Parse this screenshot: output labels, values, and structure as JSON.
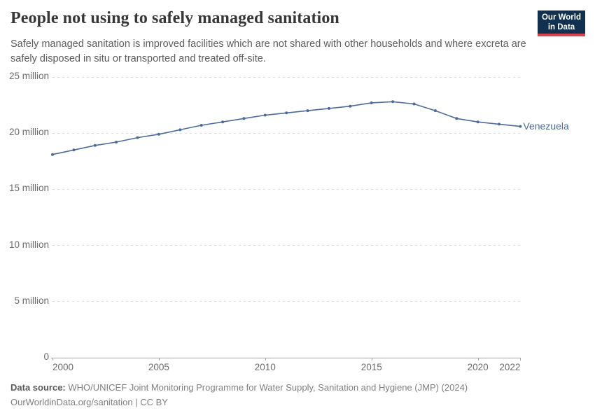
{
  "header": {
    "title": "People not using to safely managed sanitation",
    "subtitle": "Safely managed sanitation is improved facilities which are not shared with other households and where excreta are safely disposed in situ or transported and treated off-site."
  },
  "logo": {
    "line1": "Our World",
    "line2": "in Data",
    "bg_color": "#12304f",
    "accent_color": "#d7434e"
  },
  "chart_data": {
    "type": "line",
    "title": "People not using to safely managed sanitation",
    "unit": "people (millions)",
    "x": [
      2000,
      2001,
      2002,
      2003,
      2004,
      2005,
      2006,
      2007,
      2008,
      2009,
      2010,
      2011,
      2012,
      2013,
      2014,
      2015,
      2016,
      2017,
      2018,
      2019,
      2020,
      2021,
      2022
    ],
    "series": [
      {
        "name": "Venezuela",
        "color": "#4c6a9c",
        "values": [
          18.1,
          18.5,
          18.9,
          19.2,
          19.6,
          19.9,
          20.3,
          20.7,
          21.0,
          21.3,
          21.6,
          21.8,
          22.0,
          22.2,
          22.4,
          22.7,
          22.8,
          22.6,
          22.0,
          21.3,
          21.0,
          20.8,
          20.6
        ]
      }
    ],
    "xlabel": "",
    "ylabel": "",
    "ylim": [
      0,
      25
    ],
    "y_ticks": [
      0,
      5,
      10,
      15,
      20,
      25
    ],
    "y_tick_labels": [
      "0",
      "5 million",
      "10 million",
      "15 million",
      "20 million",
      "25 million"
    ],
    "x_ticks": [
      2000,
      2005,
      2010,
      2015,
      2020,
      2022
    ],
    "x_tick_labels": [
      "2000",
      "2005",
      "2010",
      "2015",
      "2020",
      "2022"
    ],
    "grid": true,
    "grid_color": "#dcdcdc",
    "legend_position": "end-of-line-label"
  },
  "footer": {
    "data_source_label": "Data source:",
    "data_source_text": "WHO/UNICEF Joint Monitoring Programme for Water Supply, Sanitation and Hygiene (JMP) (2024)",
    "license_text": "OurWorldinData.org/sanitation | CC BY"
  }
}
